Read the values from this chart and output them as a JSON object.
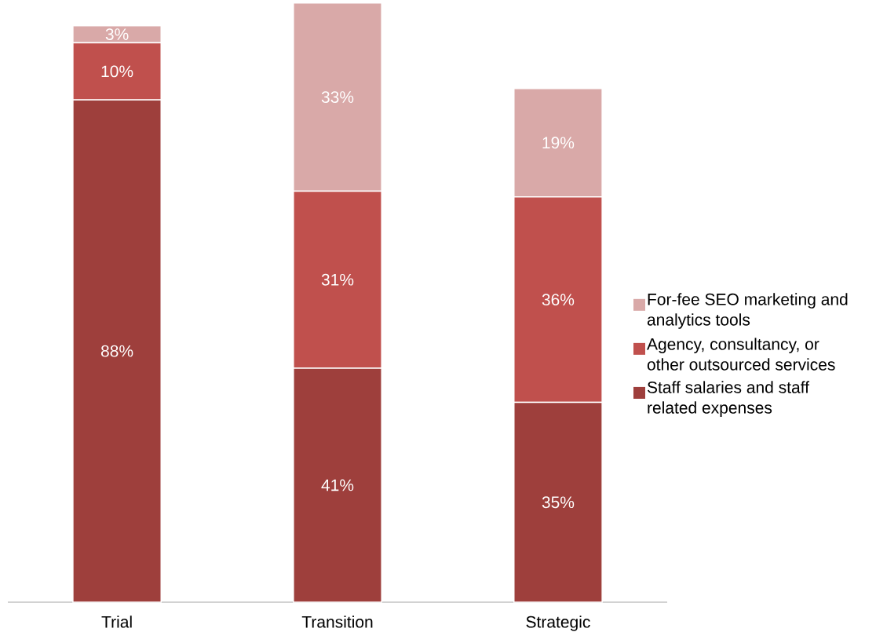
{
  "chart_data": {
    "type": "bar",
    "stacked": true,
    "categories": [
      "Trial",
      "Transition",
      "Strategic"
    ],
    "series": [
      {
        "name": "Staff salaries and staff related expenses",
        "color": "#9e3f3c",
        "values": [
          88,
          41,
          35
        ],
        "value_labels": [
          "88%",
          "41%",
          "35%"
        ]
      },
      {
        "name": "Agency, consultancy, or other outsourced services",
        "color": "#c0504d",
        "values": [
          10,
          31,
          36
        ],
        "value_labels": [
          "10%",
          "31%",
          "36%"
        ]
      },
      {
        "name": "For-fee SEO marketing and analytics tools",
        "color": "#d9a9a8",
        "values": [
          3,
          33,
          19
        ],
        "value_labels": [
          "3%",
          "33%",
          "19%"
        ]
      }
    ],
    "ylim": [
      0,
      105.5
    ],
    "legend": "right"
  }
}
